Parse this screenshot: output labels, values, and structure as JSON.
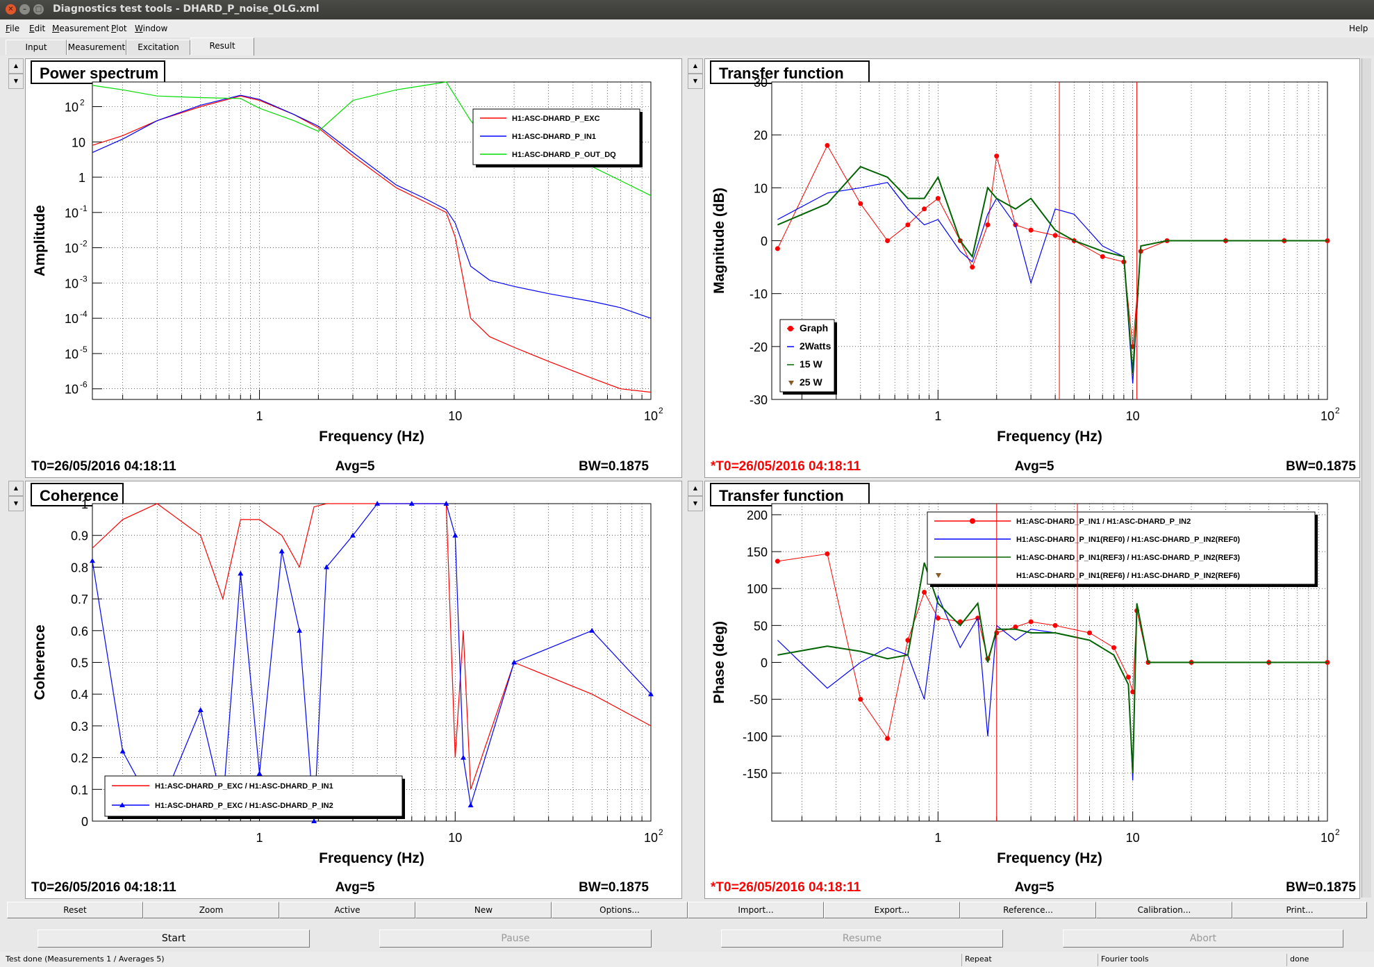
{
  "window": {
    "title": "Diagnostics test tools - DHARD_P_noise_OLG.xml",
    "help": "Help"
  },
  "menu": [
    {
      "accel": "F",
      "rest": "ile"
    },
    {
      "accel": "E",
      "rest": "dit"
    },
    {
      "accel": "M",
      "rest": "easurement"
    },
    {
      "accel": "P",
      "rest": "lot"
    },
    {
      "accel": "W",
      "rest": "indow"
    }
  ],
  "tabs": [
    "Input",
    "Measurement",
    "Excitation",
    "Result"
  ],
  "plots": {
    "tl": {
      "title": "Power spectrum",
      "xlabel": "Frequency (Hz)",
      "ylabel": "Amplitude",
      "t0": "T0=26/05/2016 04:18:11",
      "avg": "Avg=5",
      "bw": "BW=0.1875",
      "yticks": [
        {
          "b": "10",
          "e": "2",
          "v": 2
        },
        {
          "b": "10",
          "e": "",
          "v": 1
        },
        {
          "b": "1",
          "e": "",
          "v": 0
        },
        {
          "b": "10",
          "e": "-1",
          "v": -1
        },
        {
          "b": "10",
          "e": "-2",
          "v": -2
        },
        {
          "b": "10",
          "e": "-3",
          "v": -3
        },
        {
          "b": "10",
          "e": "-4",
          "v": -4
        },
        {
          "b": "10",
          "e": "-5",
          "v": -5
        },
        {
          "b": "10",
          "e": "-6",
          "v": -6
        }
      ],
      "legend": [
        "H1:ASC-DHARD_P_EXC",
        "H1:ASC-DHARD_P_IN1",
        "H1:ASC-DHARD_P_OUT_DQ"
      ]
    },
    "tr": {
      "title": "Transfer function",
      "xlabel": "Frequency (Hz)",
      "ylabel": "Magnitude (dB)",
      "t0": "*T0=26/05/2016 04:18:11",
      "avg": "Avg=5",
      "bw": "BW=0.1875",
      "yticks": [
        "30",
        "20",
        "10",
        "0",
        "-10",
        "-20",
        "-30"
      ],
      "legend": [
        "Graph",
        "2Watts",
        "15 W",
        "25 W"
      ]
    },
    "bl": {
      "title": "Coherence",
      "xlabel": "Frequency (Hz)",
      "ylabel": "Coherence",
      "t0": "T0=26/05/2016 04:18:11",
      "avg": "Avg=5",
      "bw": "BW=0.1875",
      "yticks": [
        "1",
        "0.9",
        "0.8",
        "0.7",
        "0.6",
        "0.5",
        "0.4",
        "0.3",
        "0.2",
        "0.1",
        "0"
      ],
      "legend": [
        "H1:ASC-DHARD_P_EXC / H1:ASC-DHARD_P_IN1",
        "H1:ASC-DHARD_P_EXC / H1:ASC-DHARD_P_IN2"
      ]
    },
    "br": {
      "title": "Transfer function",
      "xlabel": "Frequency (Hz)",
      "ylabel": "Phase (deg)",
      "t0": "*T0=26/05/2016 04:18:11",
      "avg": "Avg=5",
      "bw": "BW=0.1875",
      "yticks": [
        "200",
        "150",
        "100",
        "50",
        "0",
        "-50",
        "-100",
        "-150"
      ],
      "legend": [
        "H1:ASC-DHARD_P_IN1 / H1:ASC-DHARD_P_IN2",
        "H1:ASC-DHARD_P_IN1(REF0) / H1:ASC-DHARD_P_IN2(REF0)",
        "H1:ASC-DHARD_P_IN1(REF3) / H1:ASC-DHARD_P_IN2(REF3)",
        "H1:ASC-DHARD_P_IN1(REF6) / H1:ASC-DHARD_P_IN2(REF6)"
      ]
    }
  },
  "xticks": [
    {
      "b": "1",
      "e": ""
    },
    {
      "b": "10",
      "e": ""
    },
    {
      "b": "10",
      "e": "2"
    }
  ],
  "colors": {
    "exc": "#ff0000",
    "in1": "#0000ff",
    "out": "#00dd00",
    "green": "#006400",
    "ref": "#8b5a2b",
    "t0red": "#ff0000"
  },
  "buttons": [
    "Reset",
    "Zoom",
    "Active",
    "New",
    "Options...",
    "Import...",
    "Export...",
    "Reference...",
    "Calibration...",
    "Print..."
  ],
  "controls": [
    {
      "label": "Start",
      "enabled": true
    },
    {
      "label": "Pause",
      "enabled": false
    },
    {
      "label": "Resume",
      "enabled": false
    },
    {
      "label": "Abort",
      "enabled": false
    }
  ],
  "status": {
    "main": "Test done (Measurements 1 / Averages 5)",
    "repeat": "Repeat",
    "fourier": "Fourier tools",
    "done": "done"
  },
  "chart_data": [
    {
      "type": "line",
      "title": "Power spectrum",
      "xlabel": "Frequency (Hz)",
      "ylabel": "Amplitude",
      "xscale": "log",
      "yscale": "log",
      "xlim": [
        0.14,
        100
      ],
      "ylim": [
        5e-07,
        500
      ],
      "grid": true,
      "legend": "top-right",
      "x": [
        0.14,
        0.2,
        0.3,
        0.5,
        0.8,
        1,
        1.5,
        2,
        3,
        5,
        7,
        9,
        10,
        12,
        15,
        20,
        30,
        50,
        70,
        100
      ],
      "series": [
        {
          "name": "H1:ASC-DHARD_P_EXC",
          "values": [
            8,
            15,
            40,
            100,
            200,
            150,
            60,
            25,
            4,
            0.5,
            0.2,
            0.1,
            0.02,
            0.0001,
            3e-05,
            1.5e-05,
            6e-06,
            2e-06,
            1e-06,
            8e-07
          ]
        },
        {
          "name": "H1:ASC-DHARD_P_IN1",
          "values": [
            5,
            12,
            40,
            110,
            210,
            160,
            60,
            28,
            5,
            0.6,
            0.25,
            0.12,
            0.05,
            0.003,
            0.0012,
            0.0008,
            0.0005,
            0.0003,
            0.0002,
            0.0001
          ]
        },
        {
          "name": "H1:ASC-DHARD_P_OUT_DQ",
          "values": [
            400,
            300,
            200,
            180,
            170,
            90,
            40,
            20,
            150,
            300,
            400,
            500,
            200,
            40,
            10,
            5,
            3,
            2,
            0.8,
            0.3
          ]
        }
      ]
    },
    {
      "type": "line",
      "title": "Transfer function",
      "xlabel": "Frequency (Hz)",
      "ylabel": "Magnitude (dB)",
      "xscale": "log",
      "ylim": [
        -30,
        30
      ],
      "xlim": [
        0.14,
        100
      ],
      "legend": "bottom-left",
      "x": [
        0.15,
        0.27,
        0.4,
        0.55,
        0.7,
        0.85,
        1,
        1.3,
        1.5,
        1.8,
        2,
        2.5,
        3,
        4,
        5,
        7,
        9,
        10,
        11,
        15,
        30,
        60,
        100
      ],
      "series": [
        {
          "name": "Graph",
          "values": [
            -1.5,
            18,
            7,
            0,
            3,
            6,
            8,
            0,
            -5,
            3,
            16,
            3,
            2,
            1,
            0,
            -3,
            -4,
            -20,
            -2,
            0,
            0,
            0,
            0
          ]
        },
        {
          "name": "2Watts",
          "values": [
            4,
            9,
            10,
            11,
            6,
            3,
            4,
            -2,
            -4,
            5,
            8,
            3,
            -8,
            6,
            5,
            -1,
            -3,
            -27,
            -1,
            0,
            0,
            0,
            0
          ]
        },
        {
          "name": "15 W",
          "values": [
            3,
            7,
            14,
            12,
            8,
            8,
            12,
            0,
            -3,
            10,
            8,
            6,
            8,
            2,
            0,
            -2,
            -3,
            -25,
            -1,
            0,
            0,
            0,
            0
          ]
        },
        {
          "name": "25 W",
          "values": [
            null,
            null,
            null,
            null,
            null,
            null,
            null,
            null,
            null,
            null,
            null,
            null,
            null,
            null,
            null,
            null,
            null,
            null,
            null,
            null,
            null,
            null,
            null
          ]
        }
      ]
    },
    {
      "type": "line",
      "title": "Coherence",
      "xlabel": "Frequency (Hz)",
      "ylabel": "Coherence",
      "xscale": "log",
      "ylim": [
        0,
        1
      ],
      "xlim": [
        0.14,
        100
      ],
      "legend": "bottom-left",
      "x": [
        0.14,
        0.2,
        0.3,
        0.5,
        0.65,
        0.8,
        1,
        1.3,
        1.6,
        1.9,
        2.2,
        3,
        4,
        6,
        9,
        10,
        11,
        12,
        20,
        50,
        100
      ],
      "series": [
        {
          "name": "H1:ASC-DHARD_P_EXC / H1:ASC-DHARD_P_IN1",
          "values": [
            0.86,
            0.95,
            1,
            0.9,
            0.7,
            0.95,
            0.95,
            0.9,
            0.8,
            0.99,
            1,
            1,
            1,
            1,
            1,
            0.2,
            0.6,
            0.1,
            0.5,
            0.4,
            0.3
          ]
        },
        {
          "name": "H1:ASC-DHARD_P_EXC / H1:ASC-DHARD_P_IN2",
          "values": [
            0.82,
            0.22,
            0.02,
            0.35,
            0.05,
            0.78,
            0.15,
            0.85,
            0.6,
            0.0,
            0.8,
            0.9,
            1,
            1,
            1,
            0.9,
            0.2,
            0.05,
            0.5,
            0.6,
            0.4
          ]
        }
      ]
    },
    {
      "type": "line",
      "title": "Transfer function",
      "xlabel": "Frequency (Hz)",
      "ylabel": "Phase (deg)",
      "xscale": "log",
      "ylim": [
        -200,
        200
      ],
      "xlim": [
        0.14,
        100
      ],
      "legend": "top-right",
      "x": [
        0.15,
        0.27,
        0.4,
        0.55,
        0.7,
        0.85,
        1,
        1.3,
        1.6,
        1.8,
        2,
        2.5,
        3,
        4,
        6,
        8,
        9.5,
        10,
        10.5,
        12,
        20,
        50,
        100
      ],
      "series": [
        {
          "name": "H1:ASC-DHARD_P_IN1 / H1:ASC-DHARD_P_IN2",
          "values": [
            137,
            147,
            -50,
            -103,
            30,
            95,
            60,
            55,
            60,
            5,
            40,
            48,
            55,
            50,
            40,
            20,
            -20,
            -40,
            70,
            0,
            0,
            0,
            0
          ]
        },
        {
          "name": "H1:ASC-DHARD_P_IN1(REF0) / H1:ASC-DHARD_P_IN2(REF0)",
          "values": [
            30,
            -35,
            0,
            20,
            10,
            -50,
            90,
            20,
            60,
            -100,
            50,
            30,
            45,
            40,
            30,
            10,
            -30,
            -160,
            80,
            0,
            0,
            0,
            0
          ]
        },
        {
          "name": "H1:ASC-DHARD_P_IN1(REF3) / H1:ASC-DHARD_P_IN2(REF3)",
          "values": [
            10,
            22,
            15,
            5,
            10,
            135,
            80,
            50,
            80,
            0,
            45,
            45,
            40,
            40,
            30,
            10,
            -30,
            -150,
            80,
            0,
            0,
            0,
            0
          ]
        },
        {
          "name": "H1:ASC-DHARD_P_IN1(REF6) / H1:ASC-DHARD_P_IN2(REF6)",
          "values": [
            null,
            null,
            null,
            null,
            null,
            null,
            null,
            null,
            null,
            null,
            null,
            null,
            null,
            null,
            null,
            null,
            null,
            null,
            null,
            null,
            null,
            null,
            null
          ]
        }
      ]
    }
  ]
}
